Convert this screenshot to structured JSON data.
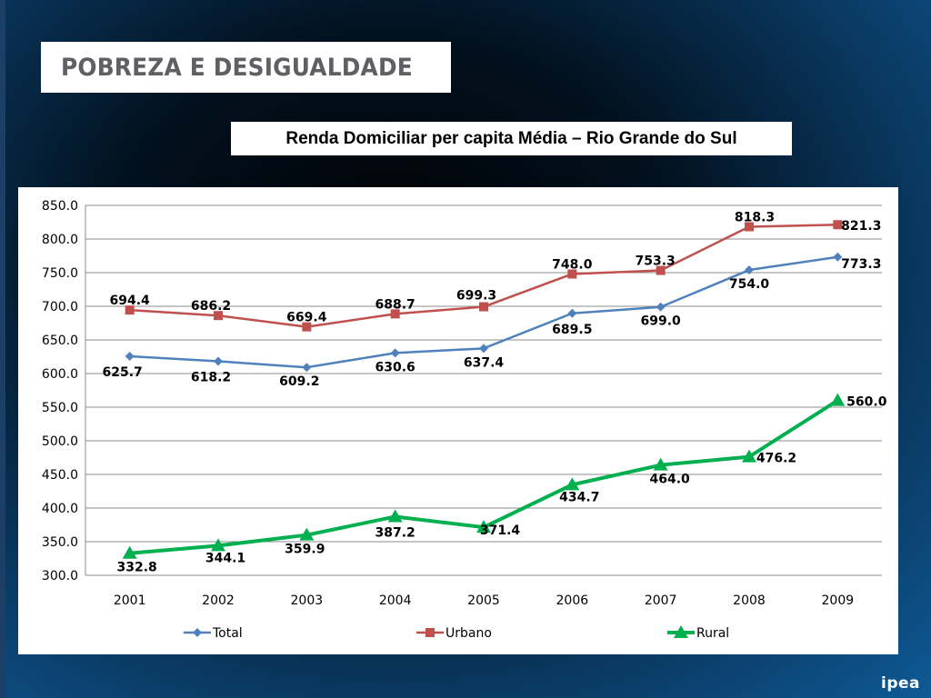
{
  "header": {
    "title": "POBREZA E DESIGUALDADE"
  },
  "logo": {
    "text": "ipea"
  },
  "chart_data": {
    "type": "line",
    "title": "Renda Domiciliar per capita Média – Rio Grande do Sul",
    "categories": [
      "2001",
      "2002",
      "2003",
      "2004",
      "2005",
      "2006",
      "2007",
      "2008",
      "2009"
    ],
    "ylim": [
      300,
      850
    ],
    "yticks": [
      "300.0",
      "350.0",
      "400.0",
      "450.0",
      "500.0",
      "550.0",
      "600.0",
      "650.0",
      "700.0",
      "750.0",
      "800.0",
      "850.0"
    ],
    "grid": true,
    "legend_position": "bottom",
    "series": [
      {
        "name": "Total",
        "color": "#4f81bd",
        "marker": "diamond",
        "values": [
          625.7,
          618.2,
          609.2,
          630.6,
          637.4,
          689.5,
          699.0,
          754.0,
          773.3
        ],
        "labels": [
          "625.7",
          "618.2",
          "609.2",
          "630.6",
          "637.4",
          "689.5",
          "699.0",
          "754.0",
          "773.3"
        ]
      },
      {
        "name": "Urbano",
        "color": "#c0504d",
        "marker": "square",
        "values": [
          694.4,
          686.2,
          669.4,
          688.7,
          699.3,
          748.0,
          753.3,
          818.3,
          821.3
        ],
        "labels": [
          "694.4",
          "686.2",
          "669.4",
          "688.7",
          "699.3",
          "748.0",
          "753.3",
          "818.3",
          "821.3"
        ]
      },
      {
        "name": "Rural",
        "color": "#00b050",
        "marker": "triangle",
        "values": [
          332.8,
          344.1,
          359.9,
          387.2,
          371.4,
          434.7,
          464.0,
          476.2,
          560.0
        ],
        "labels": [
          "332.8",
          "344.1",
          "359.9",
          "387.2",
          "371.4",
          "434.7",
          "464.0",
          "476.2",
          "560.0"
        ]
      }
    ]
  }
}
